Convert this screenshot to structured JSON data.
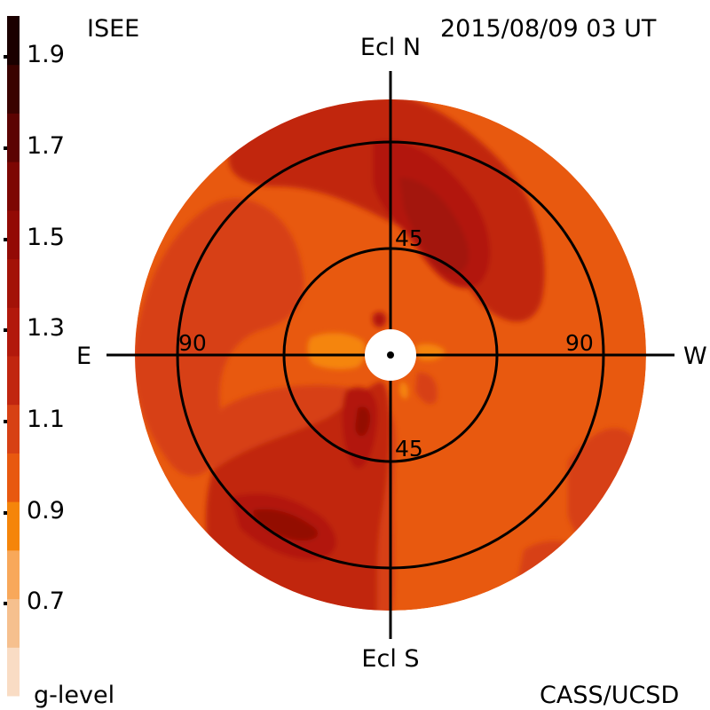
{
  "header": {
    "source_label": "ISEE",
    "timestamp": "2015/08/09 03 UT",
    "credit": "CASS/UCSD"
  },
  "colorbar": {
    "title": "g-level",
    "tick_labels": [
      "1.9",
      "1.7",
      "1.5",
      "1.3",
      "1.1",
      "0.9",
      "0.7"
    ],
    "segments": [
      {
        "from": 0.6,
        "to": 0.7,
        "color": "#f9dcc4"
      },
      {
        "from": 0.7,
        "to": 0.8,
        "color": "#f6c08e"
      },
      {
        "from": 0.8,
        "to": 0.9,
        "color": "#f8a85a"
      },
      {
        "from": 0.9,
        "to": 1.0,
        "color": "#f5850a"
      },
      {
        "from": 1.0,
        "to": 1.1,
        "color": "#e8590f"
      },
      {
        "from": 1.1,
        "to": 1.2,
        "color": "#d74114"
      },
      {
        "from": 1.2,
        "to": 1.3,
        "color": "#c1260f"
      },
      {
        "from": 1.3,
        "to": 1.4,
        "color": "#b2190b"
      },
      {
        "from": 1.4,
        "to": 1.5,
        "color": "#a31207"
      },
      {
        "from": 1.5,
        "to": 1.6,
        "color": "#930a05"
      },
      {
        "from": 1.6,
        "to": 1.7,
        "color": "#7d0603"
      },
      {
        "from": 1.7,
        "to": 1.8,
        "color": "#5c0302"
      },
      {
        "from": 1.8,
        "to": 1.9,
        "color": "#3a0200"
      },
      {
        "from": 1.9,
        "to": 2.0,
        "color": "#1a0000"
      }
    ]
  },
  "map": {
    "directions": {
      "north": "Ecl N",
      "south": "Ecl S",
      "east": "E",
      "west": "W"
    },
    "elongation_labels": {
      "inner_top": "45",
      "inner_bottom": "45",
      "outer_left": "90",
      "outer_right": "90"
    },
    "colors": {
      "background": "#e8590f",
      "level_1_0": "#f5850a",
      "level_1_2": "#d74114",
      "level_1_3": "#c1260f",
      "level_1_4": "#b2190b",
      "level_1_5": "#a31207",
      "level_1_6": "#930a05",
      "level_1_7": "#7d0603"
    }
  }
}
